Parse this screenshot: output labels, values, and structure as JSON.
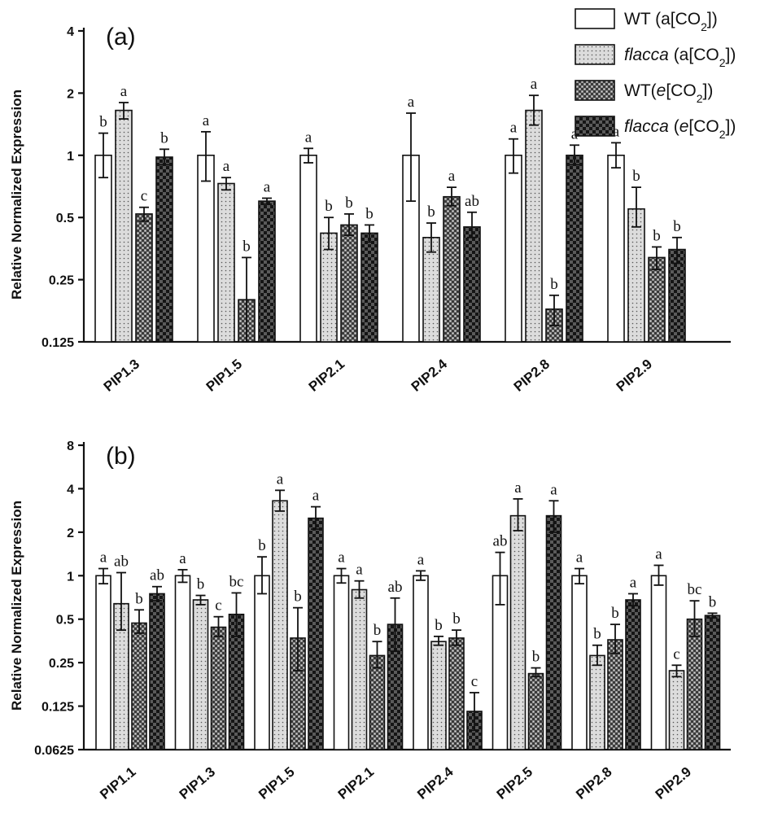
{
  "legend": {
    "series": [
      {
        "name": "WT",
        "condition_prefix": "a",
        "pattern": "white",
        "label_parts": [
          {
            "t": "WT (a[CO"
          },
          {
            "t": "2",
            "sub": true
          },
          {
            "t": "])"
          }
        ]
      },
      {
        "name": "flacca",
        "condition_prefix": "a",
        "pattern": "dots",
        "label_parts": [
          {
            "t": "flacca",
            "i": true
          },
          {
            "t": " (a[CO"
          },
          {
            "t": "2",
            "sub": true
          },
          {
            "t": "])"
          }
        ]
      },
      {
        "name": "WT",
        "condition_prefix": "e",
        "pattern": "grid",
        "label_parts": [
          {
            "t": "WT(",
            "i": false
          },
          {
            "t": "e",
            "i": true
          },
          {
            "t": "[CO"
          },
          {
            "t": "2",
            "sub": true
          },
          {
            "t": "])"
          }
        ]
      },
      {
        "name": "flacca",
        "condition_prefix": "e",
        "pattern": "checker",
        "label_parts": [
          {
            "t": "flacca",
            "i": true
          },
          {
            "t": " ("
          },
          {
            "t": "e",
            "i": true
          },
          {
            "t": "[CO"
          },
          {
            "t": "2",
            "sub": true
          },
          {
            "t": "])"
          }
        ]
      }
    ]
  },
  "colors": {
    "axis": "#111111",
    "white": "#ffffff",
    "dots_bg": "#dcdcdc",
    "grid_bg": "#8a8a8a",
    "checker_dark": "#1a1a1a",
    "checker_light": "#5a5a5a"
  },
  "chart_data": [
    {
      "panel_label": "(a)",
      "type": "bar",
      "yscale": "log2",
      "ylabel": "Relative Normalized Expression",
      "ylim": [
        0.125,
        4
      ],
      "yticks": [
        0.125,
        0.25,
        0.5,
        1,
        2,
        4
      ],
      "ytick_labels": [
        "0.125",
        "0.25",
        "0.5",
        "1",
        "2",
        "4"
      ],
      "categories": [
        "PIP1.3",
        "PIP1.5",
        "PIP2.1",
        "PIP2.4",
        "PIP2.8",
        "PIP2.9"
      ],
      "series": [
        {
          "name": "WT (a[CO2])",
          "values": [
            1.0,
            1.0,
            1.0,
            1.0,
            1.0,
            1.0
          ],
          "err_upper": [
            1.28,
            1.3,
            1.08,
            1.6,
            1.2,
            1.15
          ],
          "err_lower": [
            0.78,
            0.75,
            0.92,
            0.6,
            0.82,
            0.87
          ],
          "letters": [
            "b",
            "a",
            "a",
            "a",
            "a",
            "a"
          ]
        },
        {
          "name": "flacca (a[CO2])",
          "values": [
            1.65,
            0.73,
            0.42,
            0.4,
            1.65,
            0.55
          ],
          "err_upper": [
            1.8,
            0.78,
            0.5,
            0.47,
            1.95,
            0.7
          ],
          "err_lower": [
            1.5,
            0.68,
            0.35,
            0.34,
            1.4,
            0.45
          ],
          "letters": [
            "a",
            "a",
            "b",
            "b",
            "a",
            "b"
          ]
        },
        {
          "name": "WT (e[CO2])",
          "values": [
            0.52,
            0.2,
            0.46,
            0.63,
            0.18,
            0.32
          ],
          "err_upper": [
            0.56,
            0.32,
            0.52,
            0.7,
            0.21,
            0.36
          ],
          "err_lower": [
            0.48,
            0.125,
            0.41,
            0.57,
            0.15,
            0.28
          ],
          "letters": [
            "c",
            "b",
            "b",
            "a",
            "b",
            "b"
          ]
        },
        {
          "name": "flacca (e[CO2])",
          "values": [
            0.98,
            0.6,
            0.42,
            0.45,
            1.0,
            0.35
          ],
          "err_upper": [
            1.07,
            0.62,
            0.46,
            0.53,
            1.12,
            0.4
          ],
          "err_lower": [
            0.9,
            0.58,
            0.38,
            0.4,
            0.9,
            0.3
          ],
          "letters": [
            "b",
            "a",
            "b",
            "ab",
            "a",
            "b"
          ]
        }
      ]
    },
    {
      "panel_label": "(b)",
      "type": "bar",
      "yscale": "log2",
      "ylabel": "Relative Normalized Expression",
      "ylim": [
        0.0625,
        8
      ],
      "yticks": [
        0.0625,
        0.125,
        0.25,
        0.5,
        1,
        2,
        4,
        8
      ],
      "ytick_labels": [
        "0.0625",
        "0.125",
        "0.25",
        "0.5",
        "1",
        "2",
        "4",
        "8"
      ],
      "categories": [
        "PIP1.1",
        "PIP1.3",
        "PIP1.5",
        "PIP2.1",
        "PIP2.4",
        "PIP2.5",
        "PIP2.8",
        "PIP2.9"
      ],
      "series": [
        {
          "name": "WT (a[CO2])",
          "values": [
            1.0,
            1.0,
            1.0,
            1.0,
            1.0,
            1.0,
            1.0,
            1.0
          ],
          "err_upper": [
            1.12,
            1.1,
            1.35,
            1.12,
            1.08,
            1.45,
            1.12,
            1.18
          ],
          "err_lower": [
            0.88,
            0.9,
            0.75,
            0.89,
            0.93,
            0.63,
            0.88,
            0.86
          ],
          "letters": [
            "a",
            "a",
            "b",
            "a",
            "a",
            "ab",
            "a",
            "a"
          ]
        },
        {
          "name": "flacca (a[CO2])",
          "values": [
            0.64,
            0.68,
            3.3,
            0.8,
            0.35,
            2.6,
            0.28,
            0.22
          ],
          "err_upper": [
            1.05,
            0.73,
            3.9,
            0.92,
            0.38,
            3.4,
            0.33,
            0.24
          ],
          "err_lower": [
            0.42,
            0.63,
            2.8,
            0.7,
            0.33,
            2.05,
            0.24,
            0.2
          ],
          "letters": [
            "ab",
            "b",
            "a",
            "a",
            "b",
            "a",
            "b",
            "c"
          ]
        },
        {
          "name": "WT (e[CO2])",
          "values": [
            0.47,
            0.44,
            0.37,
            0.28,
            0.37,
            0.21,
            0.36,
            0.5
          ],
          "err_upper": [
            0.58,
            0.52,
            0.6,
            0.35,
            0.42,
            0.23,
            0.46,
            0.67
          ],
          "err_lower": [
            0.4,
            0.38,
            0.22,
            0.23,
            0.33,
            0.2,
            0.29,
            0.38
          ],
          "letters": [
            "b",
            "c",
            "b",
            "b",
            "b",
            "b",
            "b",
            "bc"
          ]
        },
        {
          "name": "flacca (e[CO2])",
          "values": [
            0.75,
            0.54,
            2.5,
            0.46,
            0.115,
            2.6,
            0.68,
            0.53
          ],
          "err_upper": [
            0.84,
            0.76,
            3.0,
            0.7,
            0.155,
            3.3,
            0.75,
            0.55
          ],
          "err_lower": [
            0.67,
            0.38,
            2.1,
            0.3,
            0.085,
            2.0,
            0.62,
            0.51
          ],
          "letters": [
            "ab",
            "bc",
            "a",
            "ab",
            "c",
            "a",
            "a",
            "b"
          ]
        }
      ]
    }
  ]
}
